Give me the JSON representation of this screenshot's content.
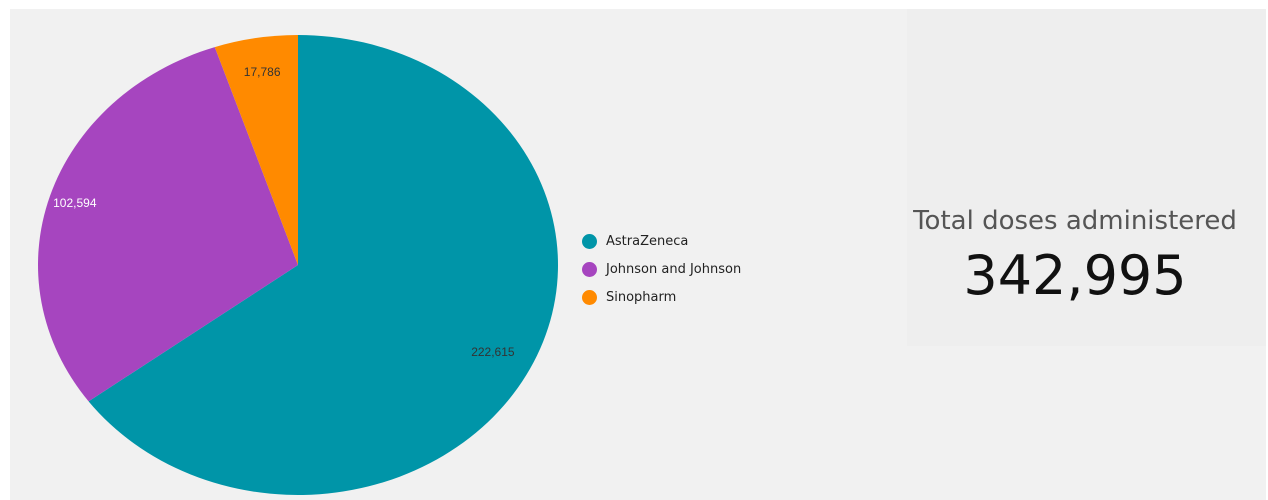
{
  "chart_data": {
    "type": "pie",
    "categories": [
      "AstraZeneca",
      "Johnson and Johnson",
      "Sinopharm"
    ],
    "values": [
      222615,
      102594,
      17786
    ],
    "value_labels": [
      "222,615",
      "102,594",
      "17,786"
    ],
    "colors": [
      "#0095a8",
      "#a645bf",
      "#ff8a00"
    ],
    "label_colors": [
      "#333333",
      "#ffffff",
      "#333333"
    ],
    "start_angle_deg": 0,
    "direction": "clockwise",
    "legend_position": "right"
  },
  "legend": {
    "items": [
      {
        "label": "AstraZeneca",
        "color": "#0095a8"
      },
      {
        "label": "Johnson and Johnson",
        "color": "#a645bf"
      },
      {
        "label": "Sinopharm",
        "color": "#ff8a00"
      }
    ]
  },
  "scorecard": {
    "title": "Total doses administered",
    "value": "342,995"
  }
}
